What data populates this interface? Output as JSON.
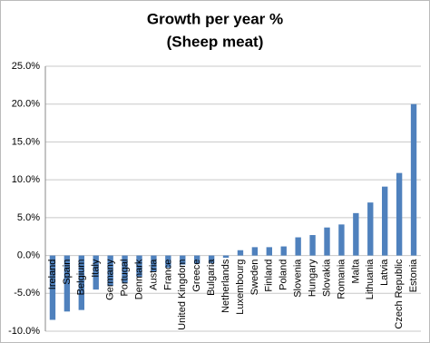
{
  "chart_data": {
    "type": "bar",
    "title": "Growth per year %",
    "subtitle": "(Sheep meat)",
    "categories": [
      "Ireland",
      "Spain",
      "Belgium",
      "Italy",
      "Germany",
      "Portugal",
      "Denmark",
      "Austria",
      "France",
      "United Kingdom",
      "Greece",
      "Bulgaria",
      "Netherlands",
      "Luxembourg",
      "Sweden",
      "Finland",
      "Poland",
      "Slovenia",
      "Hungary",
      "Slovakia",
      "Romania",
      "Malta",
      "Lithuania",
      "Latvia",
      "Czech Republic",
      "Estonia"
    ],
    "values": [
      -8.5,
      -7.4,
      -7.2,
      -4.5,
      -4.0,
      -3.6,
      -2.8,
      -2.1,
      -1.6,
      -1.2,
      -1.1,
      -1.0,
      -0.3,
      0.7,
      1.1,
      1.1,
      1.2,
      2.4,
      2.7,
      3.7,
      4.1,
      5.6,
      7.0,
      9.1,
      10.9,
      20.0
    ],
    "color": "#4f81bd",
    "ylim": [
      -10,
      25
    ],
    "yticks": [
      {
        "value": -10,
        "label": "-10.0%"
      },
      {
        "value": -5,
        "label": "-5.0%"
      },
      {
        "value": 0,
        "label": "0.0%"
      },
      {
        "value": 5,
        "label": "5.0%"
      },
      {
        "value": 10,
        "label": "10.0%"
      },
      {
        "value": 15,
        "label": "15.0%"
      },
      {
        "value": 20,
        "label": "20.0%"
      },
      {
        "value": 25,
        "label": "25.0%"
      }
    ],
    "grid": true
  }
}
